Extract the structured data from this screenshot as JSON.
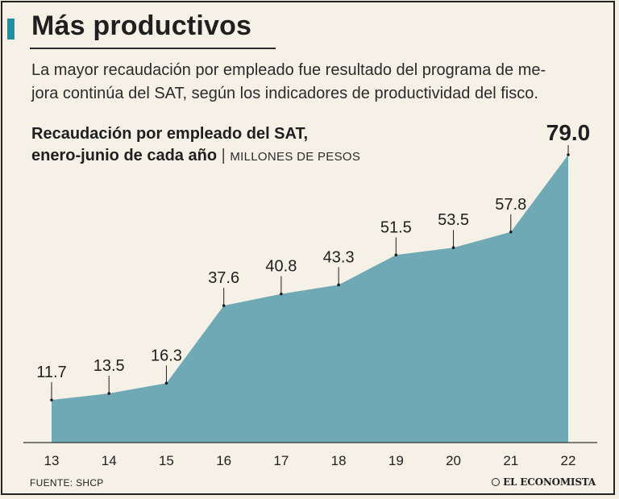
{
  "header": {
    "title": "Más productivos",
    "subtitle_line1": "La mayor recaudación por empleado fue resultado del programa de me-",
    "subtitle_line2": "jora continúa del SAT, según los indicadores de productividad del fisco."
  },
  "chart_heading": {
    "line1": "Recaudación por empleado del SAT,",
    "line2": "enero-junio de cada año",
    "separator": "|",
    "units": "MILLONES DE PESOS"
  },
  "footer": {
    "source": "FUENTE: SHCP",
    "logo": "EL ECONOMISTA"
  },
  "colors": {
    "area": "#6fa9b5",
    "accent": "#1b8fa4",
    "background": "#f6f1e6"
  },
  "chart_data": {
    "type": "area",
    "title": "Recaudación por empleado del SAT, enero-junio de cada año",
    "ylabel": "Millones de pesos",
    "xlabel": "",
    "categories": [
      "13",
      "14",
      "15",
      "16",
      "17",
      "18",
      "19",
      "20",
      "21",
      "22"
    ],
    "values": [
      11.7,
      13.5,
      16.3,
      37.6,
      40.8,
      43.3,
      51.5,
      53.5,
      57.8,
      79.0
    ],
    "labels": [
      "11.7",
      "13.5",
      "16.3",
      "37.6",
      "40.8",
      "43.3",
      "51.5",
      "53.5",
      "57.8",
      "79.0"
    ],
    "highlight_index": 9,
    "ylim": [
      0,
      79.0
    ],
    "grid": false
  }
}
